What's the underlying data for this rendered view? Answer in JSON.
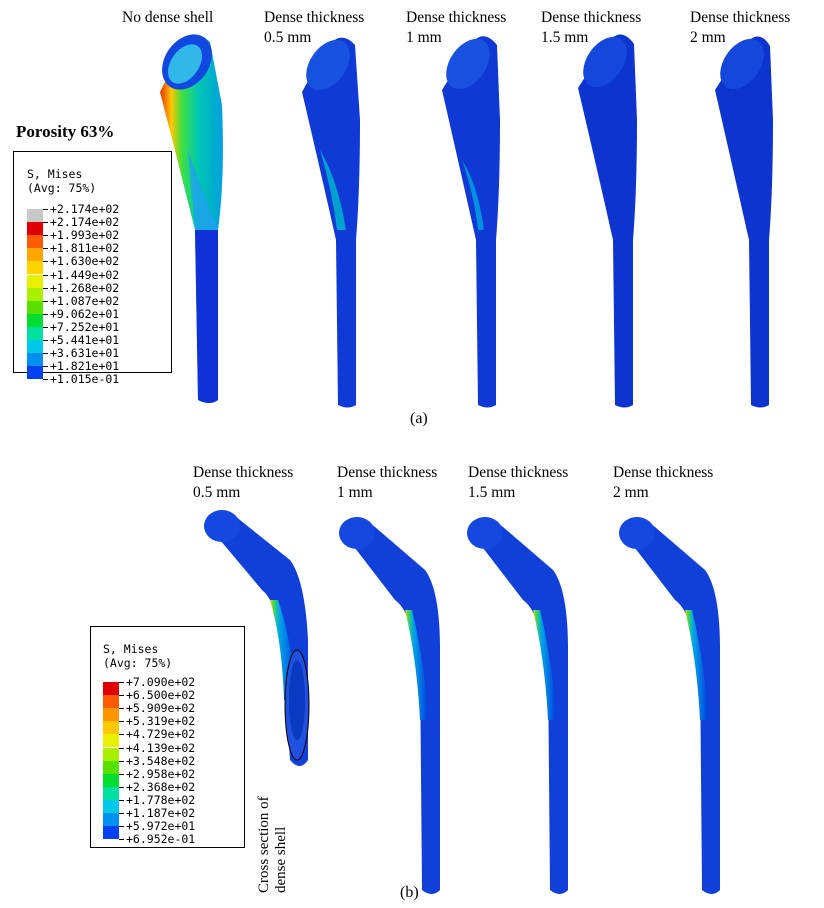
{
  "panel_a": {
    "caption": "(a)",
    "porosity_label": "Porosity 63%",
    "labels": [
      {
        "line1": "No dense shell",
        "line2": ""
      },
      {
        "line1": "Dense thickness",
        "line2": "0.5 mm"
      },
      {
        "line1": "Dense thickness",
        "line2": "1 mm"
      },
      {
        "line1": "Dense thickness",
        "line2": "1.5 mm"
      },
      {
        "line1": "Dense thickness",
        "line2": "2 mm"
      }
    ],
    "legend": {
      "title": "S, Mises",
      "subtitle": "(Avg: 75%)",
      "values": [
        "+2.174e+02",
        "+2.174e+02",
        "+1.993e+02",
        "+1.811e+02",
        "+1.630e+02",
        "+1.449e+02",
        "+1.268e+02",
        "+1.087e+02",
        "+9.062e+01",
        "+7.252e+01",
        "+5.441e+01",
        "+3.631e+01",
        "+1.821e+01",
        "+1.015e-01"
      ],
      "colors": [
        "#c8c8c8",
        "#e00000",
        "#ff5a00",
        "#ffa500",
        "#ffd200",
        "#e8f000",
        "#a8f000",
        "#5ae000",
        "#00dc30",
        "#00e0a0",
        "#00c8e8",
        "#0090f0",
        "#0040f0"
      ]
    }
  },
  "panel_b": {
    "caption": "(b)",
    "labels": [
      {
        "line1": "Dense thickness",
        "line2": "0.5 mm"
      },
      {
        "line1": "Dense thickness",
        "line2": "1 mm"
      },
      {
        "line1": "Dense thickness",
        "line2": "1.5 mm"
      },
      {
        "line1": "Dense thickness",
        "line2": "2 mm"
      }
    ],
    "cross_section_label_line1": "Cross section of",
    "cross_section_label_line2": "dense shell",
    "legend": {
      "title": "S, Mises",
      "subtitle": "(Avg: 75%)",
      "values": [
        "+7.090e+02",
        "+6.500e+02",
        "+5.909e+02",
        "+5.319e+02",
        "+4.729e+02",
        "+4.139e+02",
        "+3.548e+02",
        "+2.958e+02",
        "+2.368e+02",
        "+1.778e+02",
        "+1.187e+02",
        "+5.972e+01",
        "+6.952e-01"
      ],
      "colors": [
        "#e00000",
        "#ff5a00",
        "#ff9600",
        "#ffc800",
        "#e8f000",
        "#a8f000",
        "#5ae000",
        "#00dc30",
        "#00e0a0",
        "#00c8e8",
        "#0090f0",
        "#0040f0"
      ]
    }
  }
}
